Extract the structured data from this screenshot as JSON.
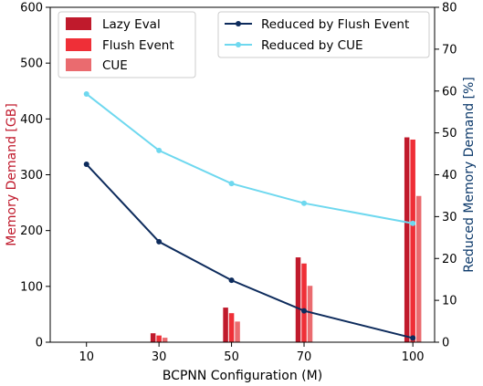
{
  "chart_data": {
    "type": "bar+line",
    "xlabel": "BCPNN Configuration (M)",
    "ylabel_left": "Memory Demand [GB]",
    "ylabel_right": "Reduced Memory Demand [%]",
    "x": [
      10,
      30,
      50,
      70,
      100
    ],
    "xlim": [
      0,
      106
    ],
    "ylim_left": [
      0,
      600
    ],
    "ylim_right": [
      0,
      80
    ],
    "yticks_left": [
      0,
      100,
      200,
      300,
      400,
      500,
      600
    ],
    "yticks_right": [
      0,
      10,
      20,
      30,
      40,
      50,
      60,
      70,
      80
    ],
    "xticks": [
      10,
      30,
      50,
      70,
      100
    ],
    "bar_series": [
      {
        "name": "Lazy Eval",
        "color": "#c01a2c",
        "values": [
          null,
          16,
          62,
          152,
          367
        ]
      },
      {
        "name": "Flush Event",
        "color": "#ef2f37",
        "values": [
          null,
          12,
          52,
          141,
          363
        ]
      },
      {
        "name": "CUE",
        "color": "#ea6b6f",
        "values": [
          null,
          8,
          37,
          101,
          262
        ]
      }
    ],
    "line_series": [
      {
        "name": "Reduced by Flush Event",
        "color": "#0d2b5c",
        "values": [
          42.5,
          24.0,
          14.8,
          7.5,
          1.0
        ]
      },
      {
        "name": "Reduced by CUE",
        "color": "#6ed8ef",
        "values": [
          59.3,
          45.8,
          37.9,
          33.2,
          28.4
        ]
      }
    ],
    "axis_colors": {
      "left": "#c01a2c",
      "right": "#0d3a6b"
    },
    "legend_bars_placement": "top-left",
    "legend_lines_placement": "top-right",
    "grid": false
  }
}
